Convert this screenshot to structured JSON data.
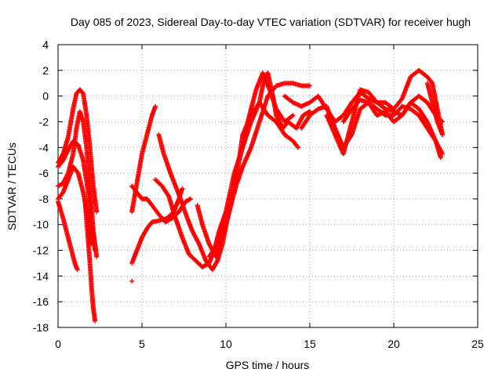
{
  "chart_data": {
    "type": "scatter",
    "title": "Day 085 of 2023, Sidereal Day-to-day VTEC variation (SDTVAR) for receiver hugh",
    "xlabel": "GPS time / hours",
    "ylabel": "SDTVAR / TECUs",
    "xlim": [
      0,
      25
    ],
    "ylim": [
      -18,
      4
    ],
    "xticks": [
      0,
      5,
      10,
      15,
      20,
      25
    ],
    "yticks": [
      4,
      2,
      0,
      -2,
      -4,
      -6,
      -8,
      -10,
      -12,
      -14,
      -16,
      -18
    ],
    "grid": true,
    "marker": "+",
    "series": [
      {
        "name": "SDTVAR",
        "color": "#ff0000",
        "tracks": [
          [
            [
              0.0,
              -5.2
            ],
            [
              0.3,
              -4.5
            ],
            [
              0.6,
              -3.2
            ],
            [
              0.9,
              -1.0
            ],
            [
              1.1,
              0.2
            ],
            [
              1.3,
              0.5
            ],
            [
              1.5,
              0.2
            ],
            [
              1.7,
              -1.5
            ],
            [
              1.9,
              -4.0
            ],
            [
              2.1,
              -7.0
            ],
            [
              2.3,
              -9.0
            ]
          ],
          [
            [
              0.0,
              -7.0
            ],
            [
              0.3,
              -6.8
            ],
            [
              0.6,
              -6.0
            ],
            [
              0.9,
              -4.5
            ],
            [
              1.1,
              -2.5
            ],
            [
              1.3,
              -1.2
            ],
            [
              1.5,
              -2.0
            ],
            [
              1.7,
              -4.0
            ],
            [
              1.9,
              -7.0
            ],
            [
              2.1,
              -10.5
            ],
            [
              2.3,
              -12.5
            ]
          ],
          [
            [
              0.0,
              -5.5
            ],
            [
              0.3,
              -5.0
            ],
            [
              0.6,
              -4.2
            ],
            [
              0.9,
              -3.5
            ],
            [
              1.2,
              -3.8
            ],
            [
              1.5,
              -5.0
            ],
            [
              1.8,
              -7.5
            ],
            [
              2.0,
              -10.0
            ],
            [
              2.2,
              -12.0
            ]
          ],
          [
            [
              0.0,
              -8.0
            ],
            [
              0.3,
              -7.5
            ],
            [
              0.6,
              -6.5
            ],
            [
              0.9,
              -5.5
            ],
            [
              1.2,
              -6.0
            ],
            [
              1.5,
              -7.5
            ],
            [
              1.8,
              -9.5
            ],
            [
              2.0,
              -11.5
            ]
          ],
          [
            [
              1.6,
              -8.0
            ],
            [
              1.75,
              -10.5
            ],
            [
              1.9,
              -13.0
            ],
            [
              2.0,
              -15.0
            ],
            [
              2.1,
              -16.5
            ],
            [
              2.2,
              -17.5
            ]
          ],
          [
            [
              0.0,
              -8.2
            ],
            [
              0.3,
              -9.5
            ],
            [
              0.6,
              -11.0
            ],
            [
              0.8,
              -12.0
            ],
            [
              1.0,
              -13.0
            ],
            [
              1.15,
              -13.5
            ]
          ],
          [
            [
              4.4,
              -9.0
            ],
            [
              4.6,
              -7.5
            ],
            [
              4.8,
              -6.0
            ],
            [
              5.0,
              -4.5
            ],
            [
              5.3,
              -3.0
            ],
            [
              5.6,
              -1.5
            ],
            [
              5.8,
              -0.8
            ]
          ],
          [
            [
              4.4,
              -7.0
            ],
            [
              4.7,
              -7.5
            ],
            [
              5.0,
              -8.0
            ],
            [
              5.3,
              -8.0
            ],
            [
              5.6,
              -8.5
            ],
            [
              6.0,
              -9.2
            ],
            [
              6.4,
              -9.8
            ],
            [
              6.8,
              -9.5
            ],
            [
              7.2,
              -9.0
            ],
            [
              7.6,
              -8.2
            ],
            [
              7.9,
              -8.0
            ]
          ],
          [
            [
              4.4,
              -13.0
            ],
            [
              4.7,
              -12.0
            ],
            [
              5.0,
              -11.0
            ],
            [
              5.3,
              -10.3
            ],
            [
              5.6,
              -9.8
            ],
            [
              6.0,
              -9.7
            ],
            [
              6.5,
              -9.5
            ],
            [
              6.9,
              -9.0
            ],
            [
              7.2,
              -8.0
            ],
            [
              7.4,
              -7.2
            ]
          ],
          [
            [
              6.0,
              -3.0
            ],
            [
              6.3,
              -4.5
            ],
            [
              6.7,
              -6.0
            ],
            [
              7.0,
              -7.0
            ],
            [
              7.3,
              -8.0
            ],
            [
              7.7,
              -9.5
            ],
            [
              8.0,
              -10.5
            ],
            [
              8.4,
              -11.5
            ],
            [
              8.8,
              -12.8
            ],
            [
              9.2,
              -13.5
            ],
            [
              9.5,
              -12.8
            ],
            [
              9.8,
              -11.5
            ],
            [
              10.1,
              -9.5
            ],
            [
              10.4,
              -7.5
            ]
          ],
          [
            [
              5.8,
              -6.5
            ],
            [
              6.2,
              -7.0
            ],
            [
              6.6,
              -7.8
            ],
            [
              7.0,
              -9.5
            ],
            [
              7.4,
              -11.0
            ],
            [
              7.8,
              -12.3
            ],
            [
              8.2,
              -12.8
            ],
            [
              8.6,
              -13.3
            ],
            [
              9.0,
              -13.0
            ],
            [
              9.3,
              -12.0
            ],
            [
              9.6,
              -10.5
            ],
            [
              10.0,
              -9.0
            ]
          ],
          [
            [
              8.3,
              -8.5
            ],
            [
              8.6,
              -10.0
            ],
            [
              9.0,
              -11.5
            ],
            [
              9.4,
              -12.5
            ],
            [
              9.8,
              -11.0
            ],
            [
              10.2,
              -9.0
            ],
            [
              10.6,
              -7.0
            ],
            [
              11.0,
              -5.5
            ],
            [
              11.5,
              -4.0
            ],
            [
              12.0,
              -2.0
            ],
            [
              12.5,
              0.0
            ],
            [
              13.0,
              0.8
            ],
            [
              13.5,
              1.0
            ],
            [
              14.0,
              1.0
            ],
            [
              14.5,
              0.8
            ],
            [
              15.0,
              0.8
            ]
          ],
          [
            [
              9.0,
              -12.5
            ],
            [
              9.5,
              -11.5
            ],
            [
              10.0,
              -9.0
            ],
            [
              10.5,
              -6.0
            ],
            [
              11.0,
              -4.0
            ],
            [
              11.5,
              -2.0
            ],
            [
              12.0,
              -0.5
            ],
            [
              12.3,
              1.5
            ],
            [
              12.5,
              1.8
            ],
            [
              12.8,
              0.0
            ],
            [
              13.0,
              -1.5
            ],
            [
              13.4,
              -2.5
            ],
            [
              13.7,
              -2.0
            ],
            [
              14.2,
              -2.5
            ],
            [
              14.6,
              -1.5
            ],
            [
              15.0,
              -1.2
            ]
          ],
          [
            [
              10.5,
              -7.5
            ],
            [
              11.0,
              -3.0
            ],
            [
              11.5,
              -1.5
            ],
            [
              12.0,
              -0.5
            ],
            [
              12.5,
              -1.5
            ],
            [
              13.0,
              -2.0
            ],
            [
              13.5,
              -3.0
            ],
            [
              14.0,
              -3.5
            ],
            [
              14.3,
              -4.0
            ]
          ],
          [
            [
              10.8,
              -5.0
            ],
            [
              11.3,
              -2.0
            ],
            [
              11.8,
              0.5
            ],
            [
              12.2,
              1.8
            ],
            [
              12.6,
              0.5
            ],
            [
              13.0,
              -1.0
            ],
            [
              13.5,
              -2.0
            ],
            [
              14.0,
              -1.5
            ]
          ],
          [
            [
              13.5,
              0.0
            ],
            [
              14.0,
              -0.5
            ],
            [
              14.5,
              -0.8
            ],
            [
              15.0,
              -0.5
            ],
            [
              15.5,
              0.0
            ],
            [
              16.0,
              -1.0
            ],
            [
              16.5,
              -2.0
            ],
            [
              17.0,
              -1.5
            ],
            [
              17.5,
              -0.5
            ],
            [
              18.0,
              0.3
            ],
            [
              18.5,
              -0.2
            ],
            [
              19.0,
              -0.5
            ],
            [
              19.5,
              -1.0
            ],
            [
              20.0,
              -1.2
            ],
            [
              20.5,
              -1.5
            ],
            [
              21.0,
              -0.5
            ],
            [
              21.5,
              0.0
            ],
            [
              22.0,
              -0.5
            ],
            [
              22.5,
              -1.5
            ],
            [
              22.9,
              -2.0
            ]
          ],
          [
            [
              14.5,
              -2.5
            ],
            [
              15.0,
              -1.5
            ],
            [
              15.5,
              -1.0
            ],
            [
              16.0,
              -0.8
            ],
            [
              16.5,
              -2.5
            ],
            [
              17.0,
              -4.0
            ],
            [
              17.5,
              -3.0
            ],
            [
              18.0,
              -1.0
            ],
            [
              18.5,
              -0.5
            ],
            [
              19.0,
              -1.0
            ],
            [
              19.5,
              -1.5
            ],
            [
              20.0,
              -1.5
            ],
            [
              20.5,
              -0.8
            ],
            [
              21.0,
              -1.0
            ],
            [
              21.5,
              -1.5
            ],
            [
              22.0,
              -2.5
            ],
            [
              22.5,
              -3.5
            ],
            [
              22.9,
              -4.5
            ]
          ],
          [
            [
              16.0,
              -1.5
            ],
            [
              16.5,
              -3.0
            ],
            [
              17.0,
              -4.5
            ],
            [
              17.5,
              -2.0
            ],
            [
              18.0,
              0.5
            ],
            [
              18.5,
              0.3
            ],
            [
              19.0,
              -0.5
            ],
            [
              19.5,
              -0.5
            ],
            [
              20.0,
              -1.0
            ],
            [
              20.5,
              -0.2
            ],
            [
              21.0,
              1.5
            ],
            [
              21.5,
              2.0
            ],
            [
              22.0,
              1.5
            ],
            [
              22.3,
              1.0
            ],
            [
              22.6,
              -1.0
            ],
            [
              22.9,
              -3.0
            ]
          ],
          [
            [
              17.0,
              -2.0
            ],
            [
              17.5,
              -1.0
            ],
            [
              18.0,
              -0.3
            ],
            [
              18.5,
              -0.5
            ],
            [
              19.0,
              -1.5
            ],
            [
              19.5,
              -1.2
            ],
            [
              20.0,
              -2.0
            ],
            [
              20.5,
              -1.5
            ],
            [
              21.0,
              -0.5
            ],
            [
              21.5,
              -1.0
            ],
            [
              22.0,
              -2.0
            ],
            [
              22.5,
              -3.5
            ],
            [
              22.8,
              -4.8
            ]
          ],
          [
            [
              22.0,
              1.0
            ],
            [
              22.3,
              -0.5
            ],
            [
              22.6,
              -2.0
            ],
            [
              22.9,
              -3.0
            ]
          ],
          [
            [
              4.4,
              -14.4
            ]
          ]
        ]
      }
    ]
  }
}
